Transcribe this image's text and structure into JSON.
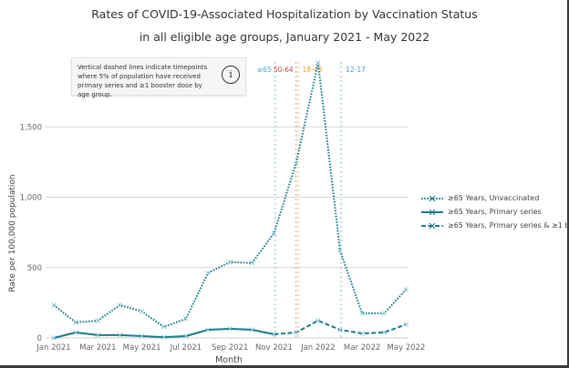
{
  "chart_data": {
    "type": "line",
    "title": "Rates of COVID-19-Associated Hospitalization by Vaccination Status",
    "subtitle": "in all eligible age groups, January 2021 - May 2022",
    "xlabel": "Month",
    "ylabel": "Rate per 100,000 population",
    "ylim": [
      0,
      2000
    ],
    "yticks": [
      0,
      500,
      1000,
      1500
    ],
    "ytick_labels": [
      "0",
      "500",
      "1,000",
      "1,500"
    ],
    "x": [
      "Jan 2021",
      "Feb 2021",
      "Mar 2021",
      "Apr 2021",
      "May 2021",
      "Jun 2021",
      "Jul 2021",
      "Aug 2021",
      "Sep 2021",
      "Oct 2021",
      "Nov 2021",
      "Dec 2021",
      "Jan 2022",
      "Feb 2022",
      "Mar 2022",
      "Apr 2022",
      "May 2022"
    ],
    "xtick_labels": [
      "Jan 2021",
      "Mar 2021",
      "May 2021",
      "Jul 2021",
      "Sep 2021",
      "Nov 2021",
      "Jan 2022",
      "Mar 2022",
      "May 2022"
    ],
    "grid": true,
    "legend_position": "right",
    "series": [
      {
        "name": "≥65 Years, Unvaccinated",
        "style": "dotted",
        "color": "#1a7a8c",
        "values": [
          234,
          110,
          123,
          234,
          188,
          78,
          136,
          461,
          539,
          532,
          745,
          1240,
          1955,
          620,
          175,
          175,
          344
        ]
      },
      {
        "name": "≥65 Years, Primary series",
        "style": "solid",
        "color": "#1a7a8c",
        "values": [
          0,
          39,
          20,
          20,
          13,
          6,
          13,
          58,
          65,
          58,
          26,
          null,
          null,
          null,
          null,
          null,
          null
        ]
      },
      {
        "name": "≥65 Years, Primary series & ≥1 booster",
        "style": "dashed",
        "color": "#1a7a8c",
        "values": [
          null,
          null,
          null,
          null,
          null,
          null,
          null,
          null,
          null,
          null,
          26,
          39,
          123,
          58,
          32,
          39,
          97
        ]
      }
    ],
    "annotations": [
      {
        "label": "≥65",
        "x_month": "Nov 2021",
        "x_index": 10.05,
        "color": "#4a9fc2"
      },
      {
        "label": "50-64",
        "x_month": "Dec 2021",
        "x_index": 11.0,
        "color": "#c0504d"
      },
      {
        "label": "18-49",
        "x_month": "Dec 2021",
        "x_index": 11.12,
        "color": "#f0a030"
      },
      {
        "label": "12-17",
        "x_month": "Feb 2022",
        "x_index": 13.05,
        "color": "#4a9fc2"
      }
    ]
  },
  "note": {
    "text": "Vertical dashed lines indicate timepoints where 5% of population have received primary series and ≥1 booster dose by age group.",
    "icon": "info-icon",
    "icon_glyph": "i"
  },
  "colors": {
    "series": "#1a7a8c",
    "grid": "#d9d9d9",
    "axis_text": "#666666"
  }
}
